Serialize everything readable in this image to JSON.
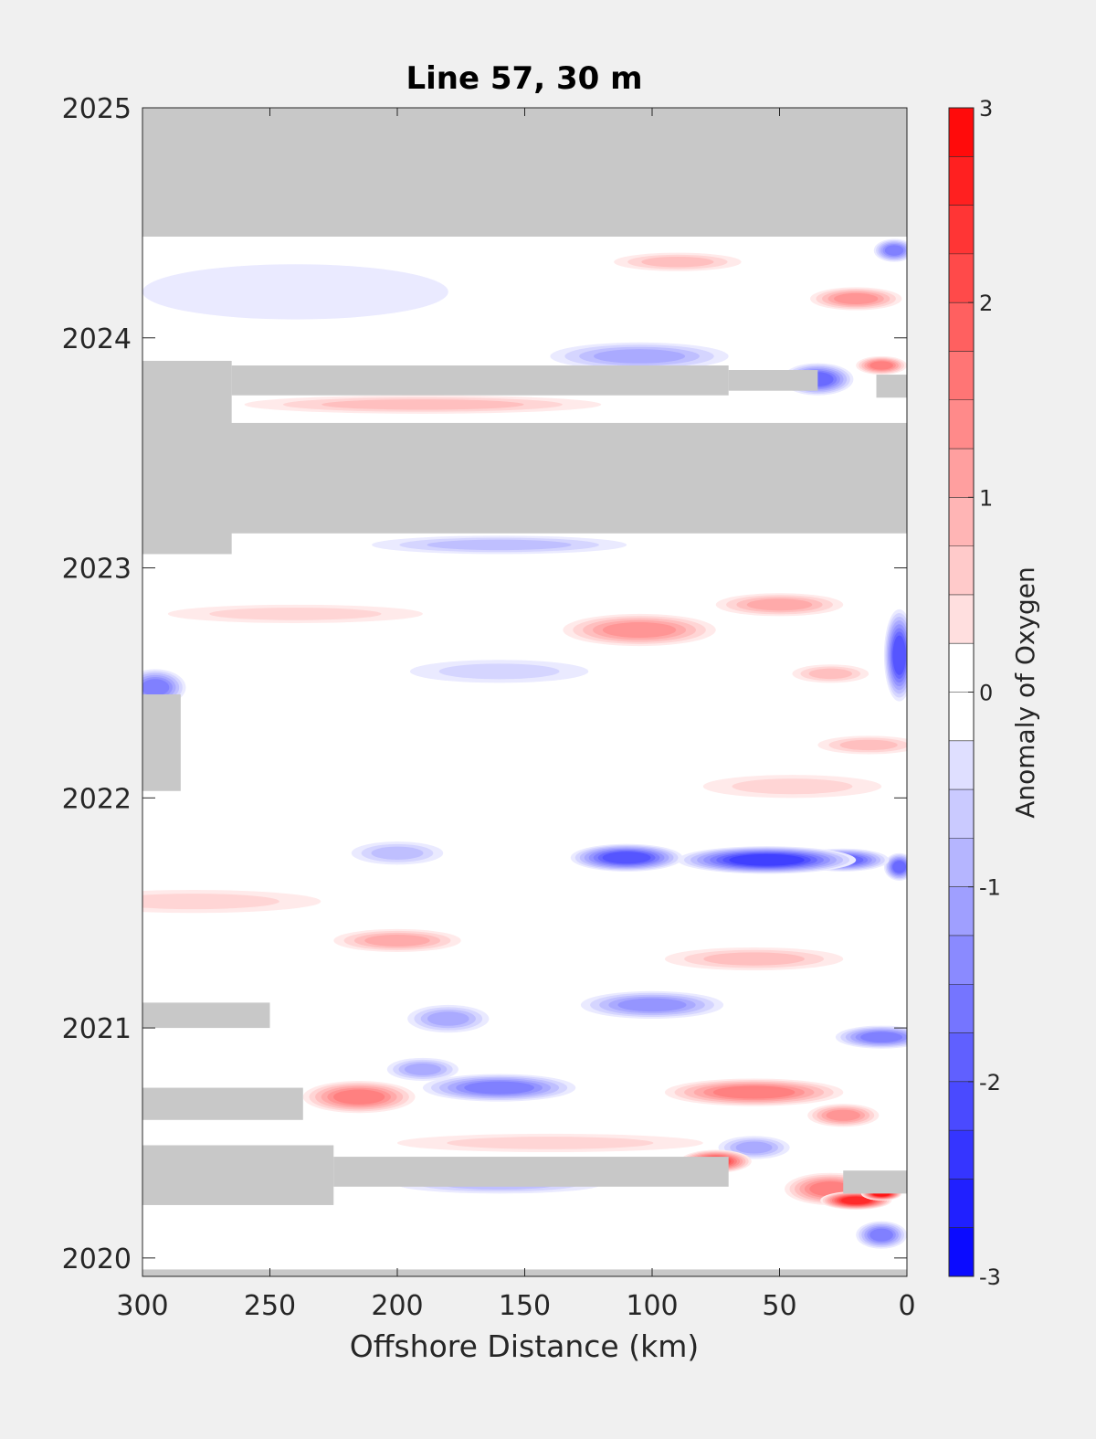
{
  "chart_data": {
    "type": "heatmap",
    "title": "Line 57, 30 m",
    "xlabel": "Offshore Distance (km)",
    "ylabel": "",
    "xlim": [
      300,
      0
    ],
    "ylim": [
      2019.92,
      2025
    ],
    "x_ticks": [
      "300",
      "250",
      "200",
      "150",
      "100",
      "50",
      "0"
    ],
    "x_tick_values": [
      300,
      250,
      200,
      150,
      100,
      50,
      0
    ],
    "y_ticks": [
      "2020",
      "2021",
      "2022",
      "2023",
      "2024",
      "2025"
    ],
    "y_tick_values": [
      2020,
      2021,
      2022,
      2023,
      2024,
      2025
    ],
    "colorbar": {
      "label": "Anomaly of Oxygen",
      "range": [
        -3,
        3
      ],
      "levels": 24,
      "tick_labels": [
        "3",
        "2",
        "1",
        "0",
        "-1",
        "-2",
        "-3"
      ],
      "tick_values": [
        3,
        2,
        1,
        0,
        -1,
        -2,
        -3
      ],
      "low_color": "#0000ff",
      "mid_color": "#ffffff",
      "high_color": "#ff0000"
    },
    "missing_color": "#c8c8c8",
    "grid": false,
    "missing_regions": [
      {
        "x1": 300,
        "x2": 0,
        "y1": 2024.44,
        "y2": 2025
      },
      {
        "x1": 300,
        "x2": 0,
        "y1": 2023.15,
        "y2": 2023.63
      },
      {
        "x1": 300,
        "x2": 265,
        "y1": 2023.06,
        "y2": 2023.9
      },
      {
        "x1": 265,
        "x2": 70,
        "y1": 2023.75,
        "y2": 2023.88
      },
      {
        "x1": 70,
        "x2": 35,
        "y1": 2023.77,
        "y2": 2023.86
      },
      {
        "x1": 12,
        "x2": 0,
        "y1": 2023.74,
        "y2": 2023.84
      },
      {
        "x1": 300,
        "x2": 285,
        "y1": 2022.03,
        "y2": 2022.45
      },
      {
        "x1": 300,
        "x2": 250,
        "y1": 2021.0,
        "y2": 2021.11
      },
      {
        "x1": 300,
        "x2": 237,
        "y1": 2020.6,
        "y2": 2020.74
      },
      {
        "x1": 300,
        "x2": 225,
        "y1": 2020.23,
        "y2": 2020.49
      },
      {
        "x1": 225,
        "x2": 70,
        "y1": 2020.31,
        "y2": 2020.44
      },
      {
        "x1": 25,
        "x2": 0,
        "y1": 2020.28,
        "y2": 2020.38
      },
      {
        "x1": 300,
        "x2": 0,
        "y1": 2019.92,
        "y2": 2019.95
      }
    ],
    "anomaly_features": [
      {
        "x": 110,
        "y": 2021.74,
        "rx": 22,
        "ry": 0.06,
        "value": -1.9
      },
      {
        "x": 55,
        "y": 2021.73,
        "rx": 35,
        "ry": 0.06,
        "value": -2.3
      },
      {
        "x": 25,
        "y": 2021.73,
        "rx": 18,
        "ry": 0.05,
        "value": -1.8
      },
      {
        "x": 3,
        "y": 2021.7,
        "rx": 6,
        "ry": 0.06,
        "value": -1.7
      },
      {
        "x": 3,
        "y": 2022.62,
        "rx": 6,
        "ry": 0.2,
        "value": -2.1
      },
      {
        "x": 295,
        "y": 2022.48,
        "rx": 12,
        "ry": 0.08,
        "value": -1.6
      },
      {
        "x": 35,
        "y": 2023.82,
        "rx": 14,
        "ry": 0.07,
        "value": -1.7
      },
      {
        "x": 5,
        "y": 2024.38,
        "rx": 8,
        "ry": 0.05,
        "value": -1.5
      },
      {
        "x": 105,
        "y": 2023.92,
        "rx": 35,
        "ry": 0.06,
        "value": -0.9
      },
      {
        "x": 160,
        "y": 2023.1,
        "rx": 50,
        "ry": 0.04,
        "value": -0.8
      },
      {
        "x": 240,
        "y": 2024.2,
        "rx": 60,
        "ry": 0.12,
        "value": -0.35
      },
      {
        "x": 10,
        "y": 2020.1,
        "rx": 10,
        "ry": 0.06,
        "value": -1.5
      },
      {
        "x": 10,
        "y": 2020.96,
        "rx": 18,
        "ry": 0.05,
        "value": -1.4
      },
      {
        "x": 160,
        "y": 2020.74,
        "rx": 30,
        "ry": 0.06,
        "value": -1.4
      },
      {
        "x": 190,
        "y": 2020.82,
        "rx": 14,
        "ry": 0.05,
        "value": -1.1
      },
      {
        "x": 100,
        "y": 2021.1,
        "rx": 28,
        "ry": 0.06,
        "value": -1.2
      },
      {
        "x": 180,
        "y": 2021.04,
        "rx": 16,
        "ry": 0.06,
        "value": -1.0
      },
      {
        "x": 200,
        "y": 2021.76,
        "rx": 18,
        "ry": 0.05,
        "value": -0.8
      },
      {
        "x": 60,
        "y": 2020.48,
        "rx": 14,
        "ry": 0.05,
        "value": -1.0
      },
      {
        "x": 160,
        "y": 2020.32,
        "rx": 40,
        "ry": 0.04,
        "value": -0.8
      },
      {
        "x": 160,
        "y": 2022.55,
        "rx": 35,
        "ry": 0.05,
        "value": -0.5
      },
      {
        "x": 20,
        "y": 2020.25,
        "rx": 14,
        "ry": 0.04,
        "value": 2.6
      },
      {
        "x": 10,
        "y": 2020.28,
        "rx": 8,
        "ry": 0.03,
        "value": 2.8
      },
      {
        "x": 30,
        "y": 2020.3,
        "rx": 18,
        "ry": 0.07,
        "value": 1.6
      },
      {
        "x": 75,
        "y": 2020.42,
        "rx": 14,
        "ry": 0.05,
        "value": 1.9
      },
      {
        "x": 60,
        "y": 2020.72,
        "rx": 35,
        "ry": 0.06,
        "value": 1.4
      },
      {
        "x": 25,
        "y": 2020.62,
        "rx": 14,
        "ry": 0.05,
        "value": 1.2
      },
      {
        "x": 215,
        "y": 2020.7,
        "rx": 22,
        "ry": 0.07,
        "value": 1.5
      },
      {
        "x": 105,
        "y": 2022.73,
        "rx": 30,
        "ry": 0.07,
        "value": 1.2
      },
      {
        "x": 50,
        "y": 2022.84,
        "rx": 25,
        "ry": 0.05,
        "value": 1.0
      },
      {
        "x": 20,
        "y": 2024.17,
        "rx": 18,
        "ry": 0.05,
        "value": 1.2
      },
      {
        "x": 10,
        "y": 2023.88,
        "rx": 10,
        "ry": 0.04,
        "value": 1.4
      },
      {
        "x": 90,
        "y": 2024.33,
        "rx": 25,
        "ry": 0.04,
        "value": 0.7
      },
      {
        "x": 190,
        "y": 2023.71,
        "rx": 70,
        "ry": 0.04,
        "value": 0.8
      },
      {
        "x": 200,
        "y": 2021.38,
        "rx": 25,
        "ry": 0.05,
        "value": 0.9
      },
      {
        "x": 60,
        "y": 2021.3,
        "rx": 35,
        "ry": 0.05,
        "value": 0.8
      },
      {
        "x": 15,
        "y": 2022.23,
        "rx": 20,
        "ry": 0.04,
        "value": 0.8
      },
      {
        "x": 30,
        "y": 2022.54,
        "rx": 15,
        "ry": 0.04,
        "value": 0.7
      },
      {
        "x": 280,
        "y": 2021.55,
        "rx": 50,
        "ry": 0.05,
        "value": 0.45
      },
      {
        "x": 240,
        "y": 2022.8,
        "rx": 50,
        "ry": 0.04,
        "value": 0.45
      },
      {
        "x": 140,
        "y": 2020.5,
        "rx": 60,
        "ry": 0.04,
        "value": 0.5
      },
      {
        "x": 45,
        "y": 2022.05,
        "rx": 35,
        "ry": 0.05,
        "value": 0.45
      }
    ]
  }
}
